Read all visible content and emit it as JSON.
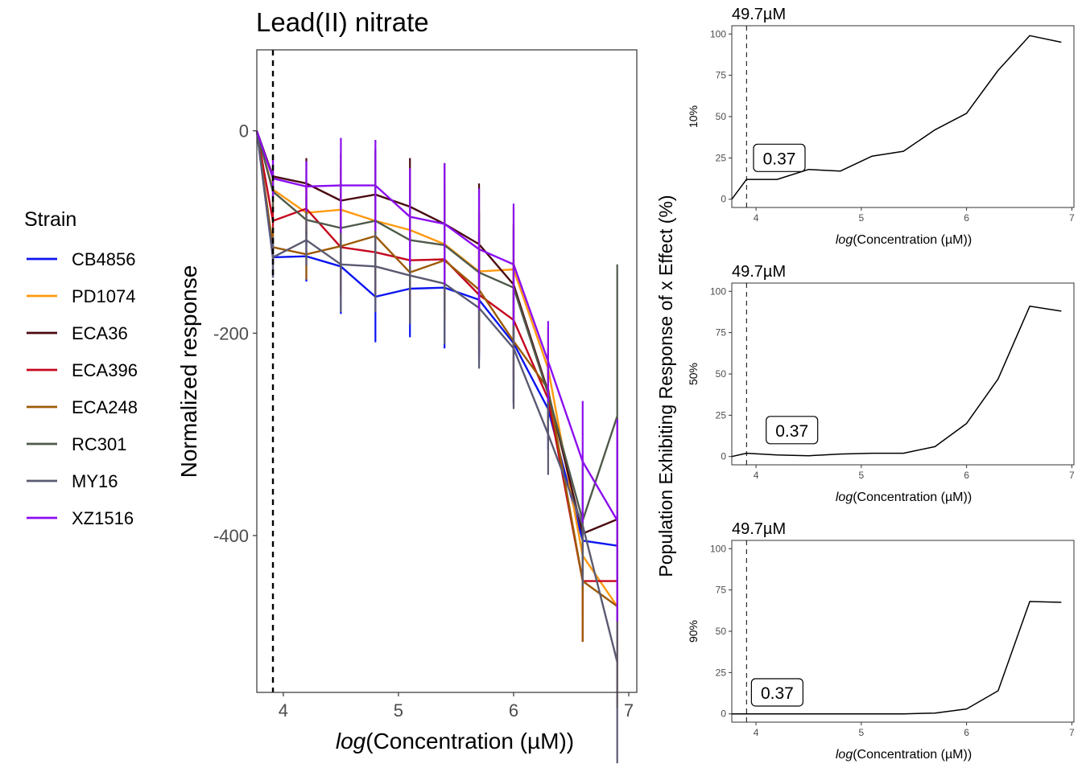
{
  "figure": {
    "legend_title": "Strain",
    "right_ylabel": "Population Exhibiting Response of x Effect (%)"
  },
  "chart_data": [
    {
      "type": "line",
      "title": "Lead(II) nitrate",
      "xlabel_italic": "log",
      "xlabel_rest": "(Concentration (µM))",
      "ylabel": "Normalized response",
      "xlim": [
        3.77,
        7.07
      ],
      "ylim": [
        -555,
        80
      ],
      "xticks": [
        4,
        5,
        6,
        7
      ],
      "xtick_labels": [
        "4",
        "5",
        "6",
        "7"
      ],
      "yticks": [
        0,
        -200,
        -400
      ],
      "ytick_labels": [
        "0",
        "-200",
        "-400"
      ],
      "vline_x": 3.91,
      "legend_position": "left",
      "x": [
        3.77,
        3.91,
        4.2,
        4.5,
        4.8,
        5.1,
        5.4,
        5.7,
        6.0,
        6.3,
        6.6,
        6.9
      ],
      "series": [
        {
          "name": "CB4856",
          "color": "#0a14f0",
          "values": [
            0,
            -125,
            -124,
            -134,
            -164,
            -156,
            -155,
            -167,
            -210,
            -275,
            -405,
            -410
          ],
          "sd": [
            40,
            20,
            25,
            47,
            45,
            48,
            60,
            60,
            60,
            40,
            60,
            100
          ]
        },
        {
          "name": "PD1074",
          "color": "#ff9910",
          "values": [
            0,
            -58,
            -81,
            -78,
            -89,
            -98,
            -112,
            -139,
            -137,
            -235,
            -420,
            -470
          ],
          "sd": [
            40,
            20,
            25,
            47,
            45,
            48,
            60,
            60,
            60,
            40,
            60,
            100
          ]
        },
        {
          "name": "ECA36",
          "color": "#4a0a10",
          "values": [
            0,
            -45,
            -52,
            -69,
            -63,
            -75,
            -92,
            -112,
            -152,
            -258,
            -398,
            -384
          ],
          "sd": [
            40,
            20,
            25,
            47,
            45,
            48,
            60,
            60,
            60,
            40,
            60,
            100
          ]
        },
        {
          "name": "ECA396",
          "color": "#c4061e",
          "values": [
            0,
            -89,
            -77,
            -115,
            -120,
            -128,
            -127,
            -162,
            -187,
            -265,
            -445,
            -445
          ],
          "sd": [
            40,
            20,
            25,
            47,
            45,
            48,
            60,
            60,
            60,
            40,
            60,
            100
          ]
        },
        {
          "name": "ECA248",
          "color": "#9c5a05",
          "values": [
            0,
            -115,
            -122,
            -114,
            -104,
            -140,
            -128,
            -157,
            -208,
            -255,
            -445,
            -470
          ],
          "sd": [
            40,
            20,
            25,
            47,
            45,
            48,
            60,
            60,
            60,
            40,
            60,
            100
          ]
        },
        {
          "name": "RC301",
          "color": "#4f5a4a",
          "values": [
            0,
            -60,
            -88,
            -96,
            -89,
            -108,
            -113,
            -140,
            -155,
            -260,
            -385,
            -282
          ],
          "sd": [
            40,
            20,
            25,
            47,
            45,
            48,
            60,
            60,
            60,
            40,
            60,
            150
          ]
        },
        {
          "name": "MY16",
          "color": "#5a5a72",
          "values": [
            0,
            -125,
            -108,
            -132,
            -134,
            -143,
            -151,
            -175,
            -215,
            -300,
            -390,
            -525
          ],
          "sd": [
            40,
            20,
            25,
            47,
            45,
            48,
            60,
            60,
            60,
            40,
            60,
            100
          ]
        },
        {
          "name": "XZ1516",
          "color": "#8c0ef0",
          "values": [
            0,
            -47,
            -55,
            -54,
            -54,
            -85,
            -92,
            -117,
            -132,
            -228,
            -327,
            -385
          ],
          "sd": [
            40,
            20,
            25,
            47,
            45,
            48,
            60,
            60,
            60,
            40,
            60,
            100
          ]
        }
      ]
    },
    {
      "type": "line",
      "title": "49.7µM",
      "xlabel_italic": "log",
      "xlabel_rest": "(Concentration (µM))",
      "ylabel": "10%",
      "xlim": [
        3.77,
        7.02
      ],
      "ylim": [
        -5,
        105
      ],
      "xticks": [
        4,
        5,
        6,
        7
      ],
      "xtick_labels": [
        "4",
        "5",
        "6",
        "7"
      ],
      "yticks": [
        0,
        25,
        50,
        75,
        100
      ],
      "ytick_labels": [
        "0",
        "25",
        "50",
        "75",
        "100"
      ],
      "vline_x": 3.91,
      "annotation": "0.37",
      "annotation_anchor": [
        3.9,
        26
      ],
      "x": [
        3.77,
        3.91,
        4.2,
        4.5,
        4.8,
        5.1,
        5.4,
        5.7,
        6.0,
        6.3,
        6.6,
        6.9
      ],
      "values": [
        0,
        12,
        12,
        18,
        17,
        26,
        29,
        42,
        52,
        78,
        99,
        95
      ]
    },
    {
      "type": "line",
      "title": "49.7µM",
      "xlabel_italic": "log",
      "xlabel_rest": "(Concentration (µM))",
      "ylabel": "50%",
      "xlim": [
        3.77,
        7.02
      ],
      "ylim": [
        -5,
        105
      ],
      "xticks": [
        4,
        5,
        6,
        7
      ],
      "xtick_labels": [
        "4",
        "5",
        "6",
        "7"
      ],
      "yticks": [
        0,
        25,
        50,
        75,
        100
      ],
      "ytick_labels": [
        "0",
        "25",
        "50",
        "75",
        "100"
      ],
      "vline_x": 3.91,
      "annotation": "0.37",
      "annotation_anchor": [
        4.02,
        17
      ],
      "x": [
        3.77,
        3.91,
        4.2,
        4.5,
        4.8,
        5.1,
        5.4,
        5.7,
        6.0,
        6.3,
        6.6,
        6.9
      ],
      "values": [
        0,
        2,
        1,
        0.5,
        1.5,
        2,
        2,
        6,
        20,
        47,
        91,
        88
      ]
    },
    {
      "type": "line",
      "title": "49.7µM",
      "xlabel_italic": "log",
      "xlabel_rest": "(Concentration (µM))",
      "ylabel": "90%",
      "xlim": [
        3.77,
        7.02
      ],
      "ylim": [
        -5,
        105
      ],
      "xticks": [
        4,
        5,
        6,
        7
      ],
      "xtick_labels": [
        "4",
        "5",
        "6",
        "7"
      ],
      "yticks": [
        0,
        25,
        50,
        75,
        100
      ],
      "ytick_labels": [
        "0",
        "25",
        "50",
        "75",
        "100"
      ],
      "vline_x": 3.91,
      "annotation": "0.37",
      "annotation_anchor": [
        3.88,
        14
      ],
      "x": [
        3.77,
        3.91,
        4.2,
        4.5,
        4.8,
        5.1,
        5.4,
        5.7,
        6.0,
        6.3,
        6.6,
        6.9
      ],
      "values": [
        0,
        0,
        0,
        0,
        0,
        0,
        0,
        0.5,
        3,
        14,
        68,
        67.5
      ]
    }
  ]
}
